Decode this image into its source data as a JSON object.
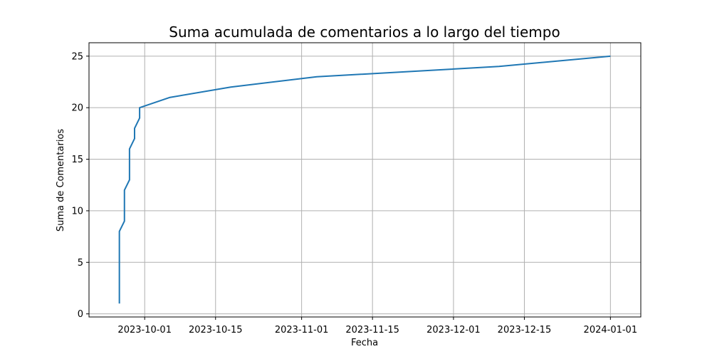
{
  "chart_data": {
    "type": "line",
    "title": "Suma acumulada de comentarios a lo largo del tiempo",
    "xlabel": "Fecha",
    "ylabel": "Suma de Comentarios",
    "xlim": [
      "2023-09-20",
      "2024-01-07"
    ],
    "ylim": [
      -0.3,
      26.3
    ],
    "grid": true,
    "x_ticks": [
      "2023-10-01",
      "2023-10-15",
      "2023-11-01",
      "2023-11-15",
      "2023-12-01",
      "2023-12-15",
      "2024-01-01"
    ],
    "y_ticks": [
      0,
      5,
      10,
      15,
      20,
      25
    ],
    "line_color": "#1f77b4",
    "series": [
      {
        "x": [
          "2023-09-26",
          "2023-09-26",
          "2023-09-26",
          "2023-09-26",
          "2023-09-26",
          "2023-09-26",
          "2023-09-26",
          "2023-09-26",
          "2023-09-27",
          "2023-09-27",
          "2023-09-27",
          "2023-09-27",
          "2023-09-28",
          "2023-09-28",
          "2023-09-28",
          "2023-09-28",
          "2023-09-29",
          "2023-09-29",
          "2023-09-30",
          "2023-09-30",
          "2023-10-06",
          "2023-10-18",
          "2023-11-04",
          "2023-12-10",
          "2024-01-01"
        ],
        "values": [
          1,
          2,
          3,
          4,
          5,
          6,
          7,
          8,
          9,
          10,
          11,
          12,
          13,
          14,
          15,
          16,
          17,
          18,
          19,
          20,
          21,
          22,
          23,
          24,
          25
        ]
      }
    ]
  }
}
